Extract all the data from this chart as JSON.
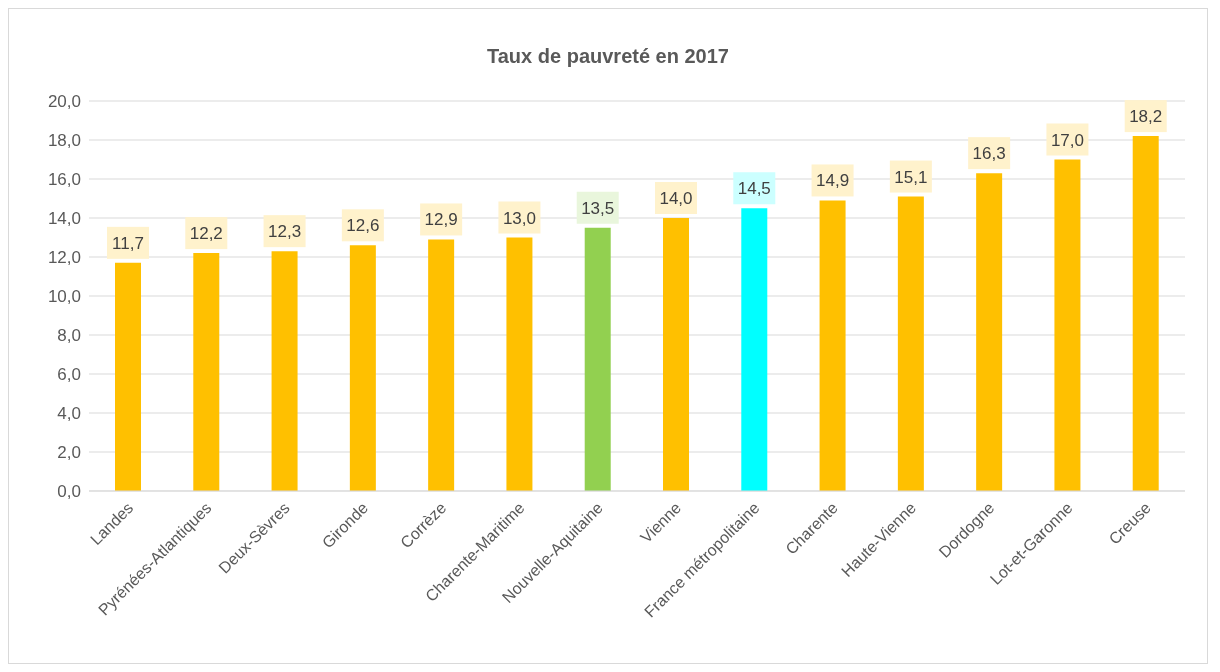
{
  "chart_data": {
    "type": "bar",
    "title": "Taux de pauvreté en 2017",
    "categories": [
      "Landes",
      "Pyrénées-Atlantiques",
      "Deux-Sèvres",
      "Gironde",
      "Corrèze",
      "Charente-Maritime",
      "Nouvelle-Aquitaine",
      "Vienne",
      "France métropolitaine",
      "Charente",
      "Haute-Vienne",
      "Dordogne",
      "Lot-et-Garonne",
      "Creuse"
    ],
    "values": [
      11.7,
      12.2,
      12.3,
      12.6,
      12.9,
      13.0,
      13.5,
      14.0,
      14.5,
      14.9,
      15.1,
      16.3,
      17.0,
      18.2
    ],
    "colors": [
      "#ffc000",
      "#ffc000",
      "#ffc000",
      "#ffc000",
      "#ffc000",
      "#ffc000",
      "#92d050",
      "#ffc000",
      "#00ffff",
      "#ffc000",
      "#ffc000",
      "#ffc000",
      "#ffc000",
      "#ffc000"
    ],
    "value_labels": [
      "11,7",
      "12,2",
      "12,3",
      "12,6",
      "12,9",
      "13,0",
      "13,5",
      "14,0",
      "14,5",
      "14,9",
      "15,1",
      "16,3",
      "17,0",
      "18,2"
    ],
    "ylim": [
      0,
      20
    ],
    "yticks": [
      {
        "value": 0,
        "label": "0,0"
      },
      {
        "value": 2,
        "label": "2,0"
      },
      {
        "value": 4,
        "label": "4,0"
      },
      {
        "value": 6,
        "label": "6,0"
      },
      {
        "value": 8,
        "label": "8,0"
      },
      {
        "value": 10,
        "label": "10,0"
      },
      {
        "value": 12,
        "label": "12,0"
      },
      {
        "value": 14,
        "label": "14,0"
      },
      {
        "value": 16,
        "label": "16,0"
      },
      {
        "value": 18,
        "label": "18,0"
      },
      {
        "value": 20,
        "label": "20,0"
      }
    ],
    "grid": "y",
    "legend": false
  }
}
